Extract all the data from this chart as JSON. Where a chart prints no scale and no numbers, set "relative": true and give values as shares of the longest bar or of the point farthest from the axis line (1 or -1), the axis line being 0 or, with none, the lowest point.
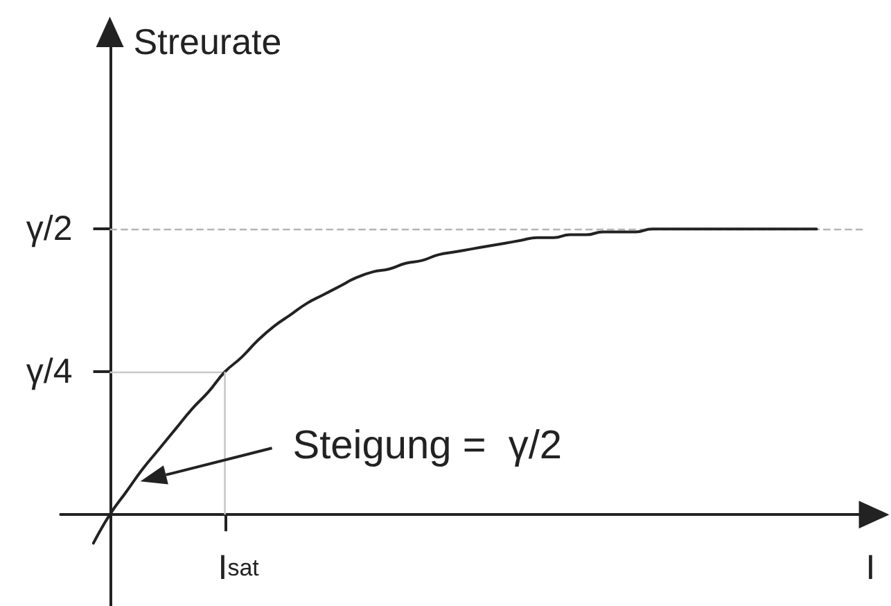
{
  "chart_data": {
    "type": "line",
    "relative": true,
    "xlabel": "I",
    "ylabel": "Streurate",
    "categories": [
      null,
      null,
      null,
      null,
      null,
      null,
      null,
      null,
      null,
      null,
      null,
      null,
      null,
      null,
      null,
      null,
      null,
      null,
      null,
      null,
      null,
      null,
      null,
      null,
      null,
      null,
      null,
      null,
      null,
      null,
      null,
      null,
      null,
      null,
      null,
      null,
      null,
      null,
      null,
      null,
      null,
      null,
      null,
      null,
      null,
      null,
      null,
      null,
      null,
      null
    ],
    "values": [
      null,
      null,
      -0.1,
      0,
      0.08,
      0.16,
      0.23,
      0.3,
      0.37,
      0.43,
      0.5,
      0.55,
      0.61,
      0.66,
      0.7,
      0.74,
      0.77,
      0.8,
      0.83,
      0.85,
      0.86,
      0.88,
      0.89,
      0.91,
      0.92,
      0.93,
      0.94,
      0.95,
      0.96,
      0.97,
      0.97,
      0.98,
      0.98,
      0.99,
      0.99,
      0.99,
      1,
      1,
      1,
      1,
      1,
      1,
      1,
      1,
      1,
      1,
      1,
      null,
      null,
      null
    ],
    "color": "#222222",
    "ref_lines": [
      {
        "axis": "y",
        "value": 1,
        "label": "γ/2",
        "color": "#b4b4b4",
        "line_style": "dashed"
      },
      {
        "axis": "y",
        "value": 0.5,
        "label": "γ/4",
        "color": "#c8c8c8"
      }
    ],
    "annotations": [
      "I$_{sat}$",
      "Steigung =  γ/2"
    ],
    "grid": false,
    "marker": "none",
    "line_style": "solid"
  }
}
